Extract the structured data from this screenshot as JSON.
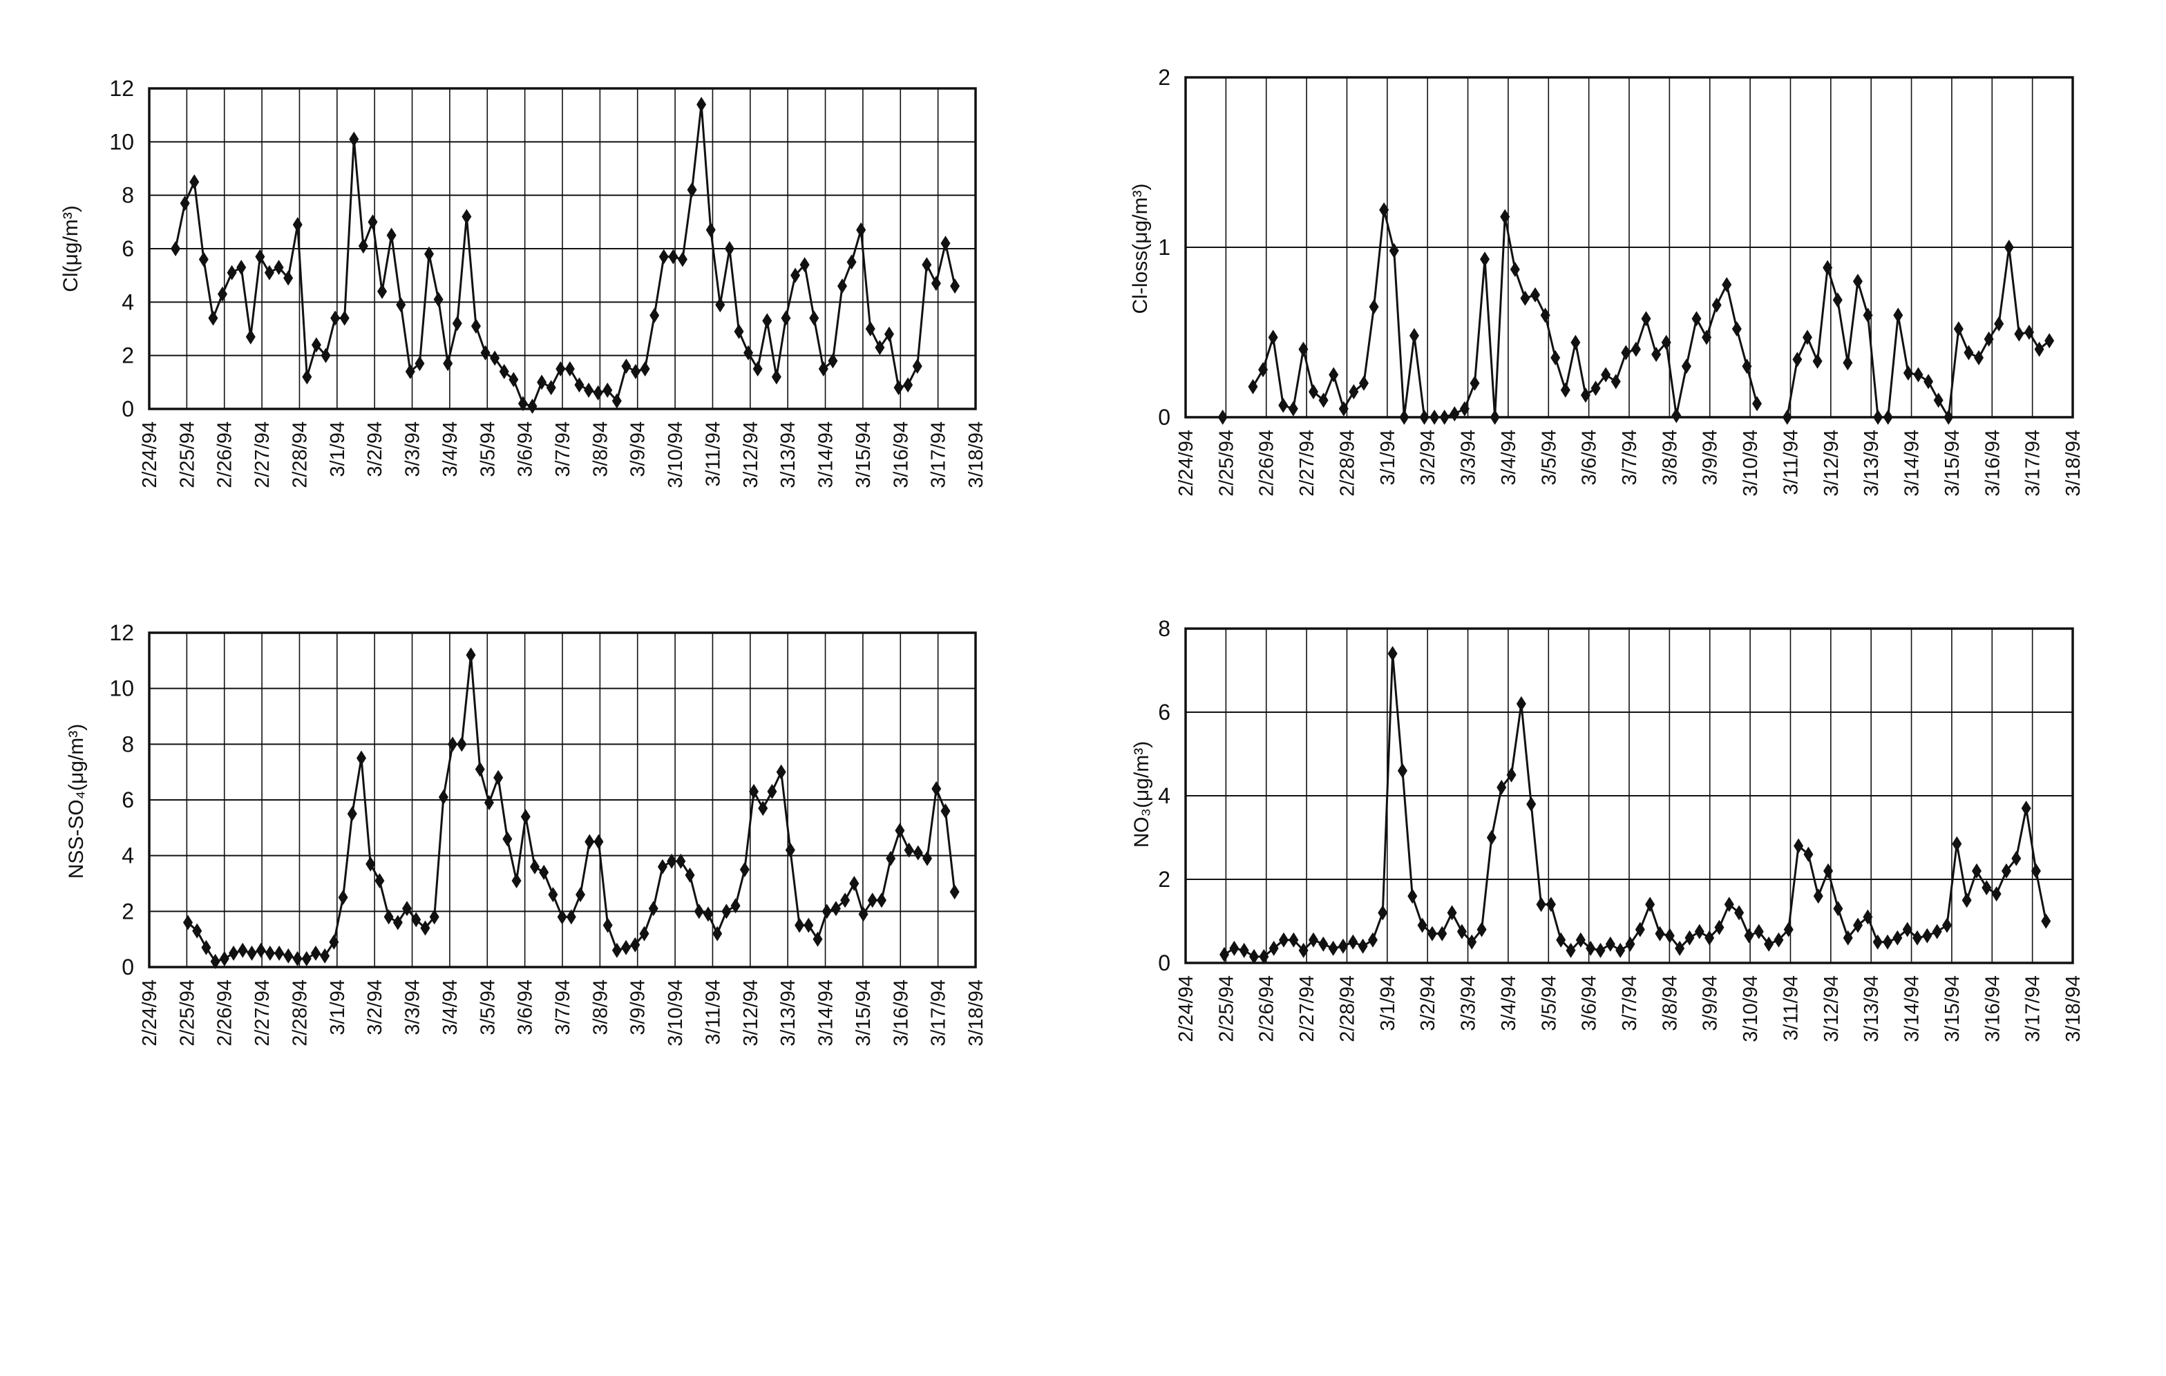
{
  "dates": [
    "2/24/94",
    "2/25/94",
    "2/26/94",
    "2/27/94",
    "2/28/94",
    "3/1/94",
    "3/2/94",
    "3/3/94",
    "3/4/94",
    "3/5/94",
    "3/6/94",
    "3/7/94",
    "3/8/94",
    "3/9/94",
    "3/10/94",
    "3/11/94",
    "3/12/94",
    "3/13/94",
    "3/14/94",
    "3/15/94",
    "3/16/94",
    "3/17/94",
    "3/18/94"
  ],
  "chart_data": [
    {
      "type": "line",
      "title": "",
      "ylabel": "Cl(μg/m³)",
      "xlabel": "",
      "ylim": [
        0,
        12
      ],
      "yticks": [
        "0",
        "2",
        "4",
        "6",
        "8",
        "10",
        "12"
      ],
      "grid": true,
      "x_start_day": 0.7,
      "x_step_day": 0.25,
      "values": [
        6.0,
        7.7,
        8.5,
        5.6,
        3.4,
        4.3,
        5.1,
        5.3,
        2.7,
        5.7,
        5.1,
        5.3,
        4.9,
        6.9,
        1.2,
        2.4,
        2.0,
        3.4,
        3.4,
        10.1,
        6.1,
        7.0,
        4.4,
        6.5,
        3.9,
        1.4,
        1.7,
        5.8,
        4.1,
        1.7,
        3.2,
        7.2,
        3.1,
        2.1,
        1.9,
        1.4,
        1.1,
        0.2,
        0.1,
        1.0,
        0.8,
        1.5,
        1.5,
        0.9,
        0.7,
        0.6,
        0.7,
        0.3,
        1.6,
        1.4,
        1.5,
        3.5,
        5.7,
        5.7,
        5.6,
        8.2,
        11.4,
        6.7,
        3.9,
        6.0,
        2.9,
        2.1,
        1.5,
        3.3,
        1.2,
        3.4,
        5.0,
        5.4,
        3.4,
        1.5,
        1.8,
        4.6,
        5.5,
        6.7,
        3.0,
        2.3,
        2.8,
        0.8,
        0.9,
        1.6,
        5.4,
        4.7,
        6.2,
        4.6
      ]
    },
    {
      "type": "line",
      "title": "",
      "ylabel": "Cl-loss(μg/m³)",
      "xlabel": "",
      "ylim": [
        0,
        2
      ],
      "yticks": [
        "0",
        "1",
        "2"
      ],
      "grid": true,
      "x_start_day": 0.92,
      "x_step_day": 0.25,
      "values": [
        0,
        null,
        null,
        0.18,
        0.28,
        0.47,
        0.07,
        0.05,
        0.4,
        0.15,
        0.1,
        0.25,
        0.05,
        0.15,
        0.2,
        0.65,
        1.22,
        0.98,
        0,
        0.48,
        0,
        0,
        0,
        0.02,
        0.05,
        0.2,
        0.93,
        0,
        1.18,
        0.87,
        0.7,
        0.72,
        0.6,
        0.35,
        0.16,
        0.44,
        0.13,
        0.17,
        0.25,
        0.21,
        0.38,
        0.4,
        0.58,
        0.37,
        0.44,
        0.01,
        0.3,
        0.58,
        0.47,
        0.66,
        0.78,
        0.52,
        0.3,
        0.08,
        null,
        null,
        0,
        0.34,
        0.47,
        0.33,
        0.88,
        0.69,
        0.32,
        0.8,
        0.6,
        0,
        0,
        0.6,
        0.26,
        0.25,
        0.21,
        0.1,
        0,
        0.52,
        0.38,
        0.35,
        0.46,
        0.55,
        1.0,
        0.49,
        0.5,
        0.4,
        0.45
      ]
    },
    {
      "type": "line",
      "title": "",
      "ylabel": "NSS-SO₄(μg/m³)",
      "xlabel": "",
      "ylim": [
        0,
        12
      ],
      "yticks": [
        "0",
        "2",
        "4",
        "6",
        "8",
        "10",
        "12"
      ],
      "grid": true,
      "x_start_day": 1.03,
      "x_step_day": 0.243,
      "values": [
        1.6,
        1.3,
        0.7,
        0.2,
        0.3,
        0.5,
        0.6,
        0.5,
        0.6,
        0.5,
        0.5,
        0.4,
        0.3,
        0.3,
        0.5,
        0.4,
        0.9,
        2.5,
        5.5,
        7.5,
        3.7,
        3.1,
        1.8,
        1.6,
        2.1,
        1.7,
        1.4,
        1.8,
        6.1,
        8.0,
        8.0,
        11.2,
        7.1,
        5.9,
        6.8,
        4.6,
        3.1,
        5.4,
        3.6,
        3.4,
        2.6,
        1.8,
        1.8,
        2.6,
        4.5,
        4.5,
        1.5,
        0.6,
        0.7,
        0.8,
        1.2,
        2.1,
        3.6,
        3.8,
        3.8,
        3.3,
        2.0,
        1.9,
        1.2,
        2.0,
        2.2,
        3.5,
        6.3,
        5.7,
        6.3,
        7.0,
        4.2,
        1.5,
        1.5,
        1.0,
        2.0,
        2.1,
        2.4,
        3.0,
        1.9,
        2.4,
        2.4,
        3.9,
        4.9,
        4.2,
        4.1,
        3.9,
        6.4,
        5.6,
        2.7
      ]
    },
    {
      "type": "line",
      "title": "",
      "ylabel": "NO₃(μg/m³)",
      "xlabel": "",
      "ylim": [
        0,
        8
      ],
      "yticks": [
        "0",
        "2",
        "4",
        "6",
        "8"
      ],
      "grid": true,
      "x_start_day": 0.96,
      "x_step_day": 0.2455,
      "values": [
        0.2,
        0.35,
        0.3,
        0.15,
        0.15,
        0.35,
        0.55,
        0.55,
        0.3,
        0.55,
        0.45,
        0.35,
        0.4,
        0.5,
        0.4,
        0.55,
        1.2,
        7.4,
        4.6,
        1.6,
        0.9,
        0.7,
        0.7,
        1.2,
        0.75,
        0.5,
        0.8,
        3.0,
        4.2,
        4.5,
        6.2,
        3.8,
        1.4,
        1.4,
        0.55,
        0.3,
        0.55,
        0.35,
        0.3,
        0.45,
        0.3,
        0.45,
        0.8,
        1.4,
        0.7,
        0.65,
        0.35,
        0.6,
        0.75,
        0.6,
        0.85,
        1.4,
        1.2,
        0.65,
        0.75,
        0.45,
        0.55,
        0.8,
        2.8,
        2.6,
        1.6,
        2.2,
        1.3,
        0.6,
        0.9,
        1.1,
        0.5,
        0.5,
        0.6,
        0.8,
        0.6,
        0.65,
        0.75,
        0.9,
        2.85,
        1.5,
        2.2,
        1.8,
        1.65,
        2.2,
        2.5,
        3.7,
        2.2,
        1.0
      ]
    }
  ]
}
